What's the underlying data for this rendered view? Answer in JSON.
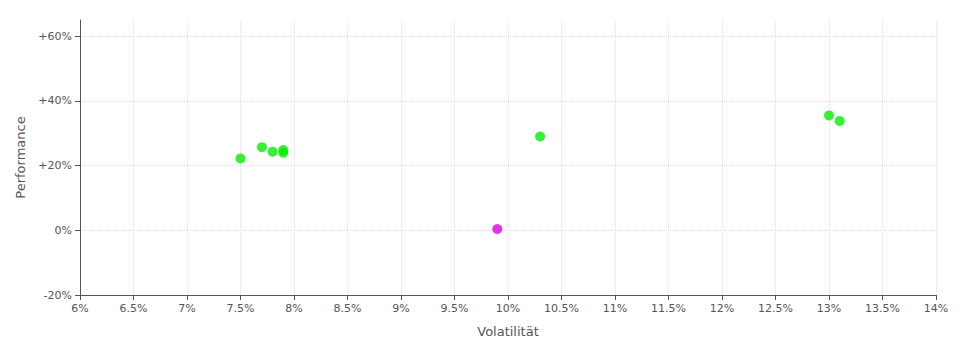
{
  "chart_data": {
    "type": "scatter",
    "xlabel": "Volatilität",
    "ylabel": "Performance",
    "xlim": [
      0.06,
      0.14
    ],
    "ylim": [
      -0.2,
      0.65
    ],
    "xticks": [
      {
        "value": 0.06,
        "label": "6%"
      },
      {
        "value": 0.065,
        "label": "6.5%"
      },
      {
        "value": 0.07,
        "label": "7%"
      },
      {
        "value": 0.075,
        "label": "7.5%"
      },
      {
        "value": 0.08,
        "label": "8%"
      },
      {
        "value": 0.085,
        "label": "8.5%"
      },
      {
        "value": 0.09,
        "label": "9%"
      },
      {
        "value": 0.095,
        "label": "9.5%"
      },
      {
        "value": 0.1,
        "label": "10%"
      },
      {
        "value": 0.105,
        "label": "10.5%"
      },
      {
        "value": 0.11,
        "label": "11%"
      },
      {
        "value": 0.115,
        "label": "11.5%"
      },
      {
        "value": 0.12,
        "label": "12%"
      },
      {
        "value": 0.125,
        "label": "12.5%"
      },
      {
        "value": 0.13,
        "label": "13%"
      },
      {
        "value": 0.135,
        "label": "13.5%"
      },
      {
        "value": 0.14,
        "label": "14%"
      }
    ],
    "yticks": [
      {
        "value": -0.2,
        "label": "-20%"
      },
      {
        "value": 0.0,
        "label": "0%"
      },
      {
        "value": 0.2,
        "label": "+20%"
      },
      {
        "value": 0.4,
        "label": "+40%"
      },
      {
        "value": 0.6,
        "label": "+60%"
      }
    ],
    "grid": true,
    "series": [
      {
        "color": "#00ee00",
        "x": [
          0.075,
          0.077,
          0.078,
          0.079,
          0.079,
          0.103,
          0.13,
          0.131
        ],
        "values": [
          0.222,
          0.257,
          0.243,
          0.24,
          0.248,
          0.29,
          0.355,
          0.338
        ]
      },
      {
        "color": "#dd00dd",
        "x": [
          0.099
        ],
        "values": [
          0.004
        ]
      }
    ]
  }
}
